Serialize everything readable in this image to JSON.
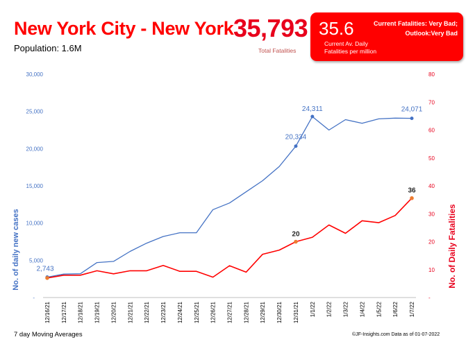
{
  "header": {
    "title": "New York City - New York",
    "population": "Population: 1.6M",
    "total_fatalities": "35,793",
    "total_fatalities_label": "Total Fatalities"
  },
  "info_box": {
    "rate": "35.6",
    "rate_label": "Current Av. Daily Fatalities per million",
    "status_line1": "Current Fatalities: Very Bad;",
    "status_line2": "Outlook:Very Bad"
  },
  "footer": {
    "left": "7 day Moving Averages",
    "right": "©JF-Insights.com  Data as of 01-07-2022"
  },
  "colors": {
    "cases": "#4472c4",
    "fatalities": "#ff0000",
    "highlight_marker": "#ed7d31",
    "title": "#ff0000"
  },
  "chart_data": {
    "type": "line",
    "x": [
      "12/16/21",
      "12/17/21",
      "12/18/21",
      "12/19/21",
      "12/20/21",
      "12/21/21",
      "12/22/21",
      "12/23/21",
      "12/24/21",
      "12/25/21",
      "12/26/21",
      "12/27/21",
      "12/28/21",
      "12/29/21",
      "12/30/21",
      "12/31/21",
      "1/1/22",
      "1/2/22",
      "1/3/22",
      "1/4/22",
      "1/5/22",
      "1/6/22",
      "1/7/22"
    ],
    "series": [
      {
        "axis": "left",
        "color": "#4472c4",
        "values": [
          2743,
          3150,
          3200,
          4700,
          4850,
          6200,
          7300,
          8200,
          8700,
          8700,
          11800,
          12700,
          14200,
          15700,
          17600,
          20334,
          24311,
          22500,
          23900,
          23400,
          24000,
          24100,
          24071
        ]
      },
      {
        "axis": "right",
        "color": "#ff0000",
        "values": [
          7,
          8,
          8,
          9.6,
          8.5,
          9.6,
          9.6,
          11.5,
          9.4,
          9.4,
          7.3,
          11.4,
          9.1,
          15.5,
          17,
          20,
          21.6,
          26,
          23,
          27.5,
          26.8,
          29.4,
          35.6
        ]
      }
    ],
    "data_labels": [
      {
        "series": 0,
        "index": 0,
        "text": "2,743"
      },
      {
        "series": 0,
        "index": 15,
        "text": "20,334"
      },
      {
        "series": 0,
        "index": 16,
        "text": "24,311"
      },
      {
        "series": 0,
        "index": 22,
        "text": "24,071"
      },
      {
        "series": 1,
        "index": 15,
        "text": "20"
      },
      {
        "series": 1,
        "index": 22,
        "text": "36"
      }
    ],
    "highlight_markers": [
      {
        "series": 1,
        "index": 0
      },
      {
        "series": 1,
        "index": 15
      },
      {
        "series": 1,
        "index": 22
      }
    ],
    "ylabel_left": "No. of daily new  cases",
    "ylabel_right": "No. of Daily Fatalities",
    "ylim_left": [
      0,
      30000
    ],
    "ylim_right": [
      0,
      80
    ],
    "yticks_left": [
      "-",
      "5,000",
      "10,000",
      "15,000",
      "20,000",
      "25,000",
      "30,000"
    ],
    "yticks_right": [
      "-",
      "10",
      "20",
      "30",
      "40",
      "50",
      "60",
      "70",
      "80"
    ],
    "grid": false,
    "legend": "none"
  }
}
